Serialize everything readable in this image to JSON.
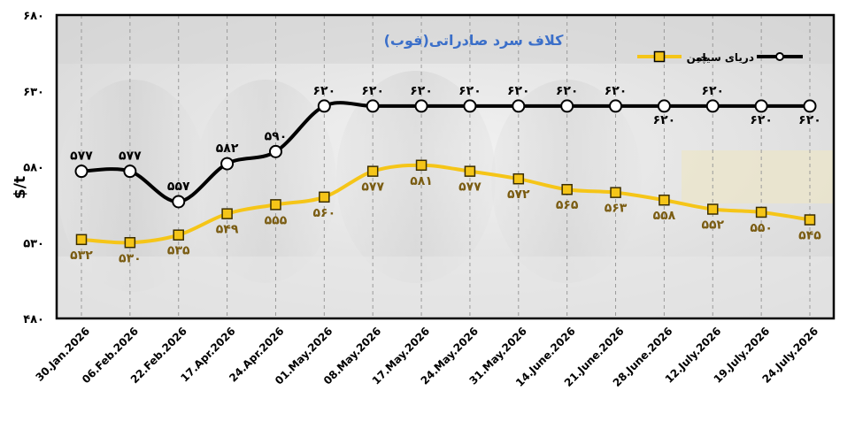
{
  "chart_data": {
    "type": "line",
    "title": "کلاف سرد صادراتی(فوب)",
    "ylabel": "$/t",
    "xlabel": "",
    "ylim": [
      480,
      680
    ],
    "yticks": [
      480,
      530,
      580,
      630,
      680
    ],
    "ytick_labels": [
      "۴۸۰",
      "۵۳۰",
      "۵۸۰",
      "۶۳۰",
      "۶۸۰"
    ],
    "categories": [
      "30.Jan.2026",
      "06.Feb.2026",
      "22.Feb.2026",
      "17.Apr.2026",
      "24.Apr.2026",
      "01.May.2026",
      "08.May.2026",
      "17.May.2026",
      "24.May.2026",
      "31.May.2026",
      "14.June.2026",
      "21.June.2026",
      "28.June.2026",
      "12.July.2026",
      "19.July.2026",
      "24.July.2026"
    ],
    "series": [
      {
        "name": "دریای سیاه",
        "color": "#000000",
        "marker": "circle",
        "values": [
          577,
          577,
          557,
          582,
          590,
          620,
          620,
          620,
          620,
          620,
          620,
          620,
          620,
          620,
          620,
          620
        ],
        "labels": [
          "۵۷۷",
          "۵۷۷",
          "۵۵۷",
          "۵۸۲",
          "۵۹۰",
          "۶۲۰",
          "۶۲۰",
          "۶۲۰",
          "۶۲۰",
          "۶۲۰",
          "۶۲۰",
          "۶۲۰",
          "۶۲۰",
          "۶۲۰",
          "۶۲۰",
          "۶۲۰"
        ],
        "label_color": "#000000"
      },
      {
        "name": "چین",
        "color": "#F5C518",
        "marker": "square",
        "values": [
          532,
          530,
          535,
          549,
          555,
          560,
          577,
          581,
          577,
          572,
          565,
          563,
          558,
          552,
          550,
          545
        ],
        "labels": [
          "۵۳۲",
          "۵۳۰",
          "۵۳۵",
          "۵۴۹",
          "۵۵۵",
          "۵۶۰",
          "۵۷۷",
          "۵۸۱",
          "۵۷۷",
          "۵۷۲",
          "۵۶۵",
          "۵۶۳",
          "۵۵۸",
          "۵۵۲",
          "۵۵۰",
          "۵۴۵"
        ],
        "label_color": "#7A5C12"
      }
    ],
    "legend_position": "top-right",
    "grid": "vertical dashed",
    "colors": {
      "title": "#3B6FC9",
      "frame": "#000000"
    }
  }
}
